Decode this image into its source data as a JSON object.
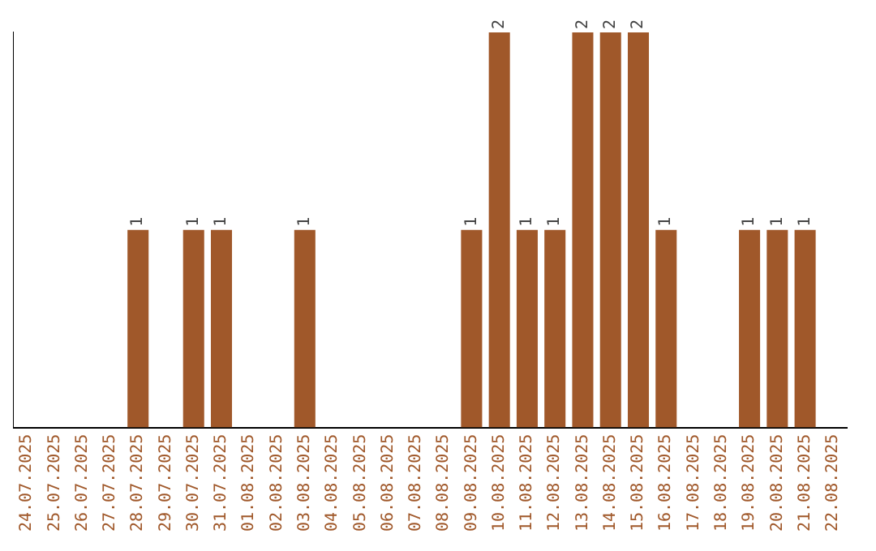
{
  "chart_data": {
    "type": "bar",
    "categories": [
      "24.07.2025",
      "25.07.2025",
      "26.07.2025",
      "27.07.2025",
      "28.07.2025",
      "29.07.2025",
      "30.07.2025",
      "31.07.2025",
      "01.08.2025",
      "02.08.2025",
      "03.08.2025",
      "04.08.2025",
      "05.08.2025",
      "06.08.2025",
      "07.08.2025",
      "08.08.2025",
      "09.08.2025",
      "10.08.2025",
      "11.08.2025",
      "12.08.2025",
      "13.08.2025",
      "14.08.2025",
      "15.08.2025",
      "16.08.2025",
      "17.08.2025",
      "18.08.2025",
      "19.08.2025",
      "20.08.2025",
      "21.08.2025",
      "22.08.2025"
    ],
    "values": [
      0,
      0,
      0,
      0,
      1,
      0,
      1,
      1,
      0,
      0,
      1,
      0,
      0,
      0,
      0,
      0,
      1,
      2,
      1,
      1,
      2,
      2,
      2,
      1,
      0,
      0,
      1,
      1,
      1,
      0
    ],
    "value_labels": [
      null,
      null,
      null,
      null,
      "1",
      null,
      "1",
      "1",
      null,
      null,
      "1",
      null,
      null,
      null,
      null,
      null,
      "1",
      "2",
      "1",
      "1",
      "2",
      "2",
      "2",
      "1",
      null,
      null,
      "1",
      "1",
      "1",
      null
    ],
    "color": "#a0582a",
    "tick_labels": "x",
    "grid": false,
    "legend": false
  }
}
